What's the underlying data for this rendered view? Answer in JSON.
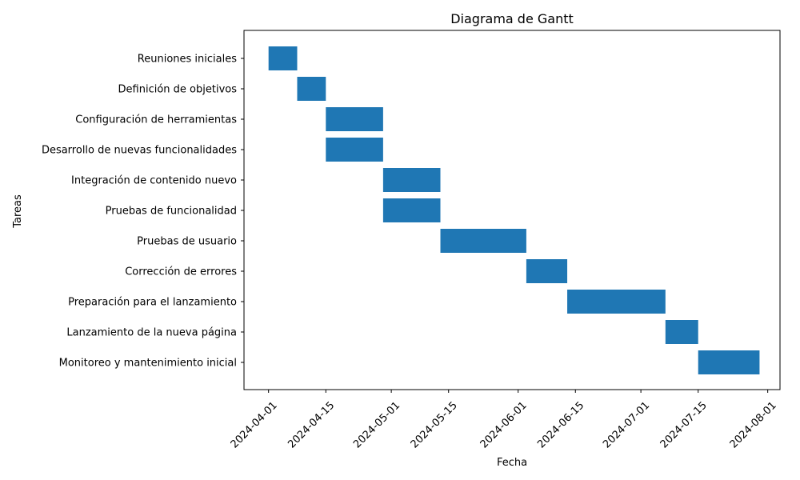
{
  "chart_data": {
    "type": "bar",
    "orientation": "horizontal-gantt",
    "title": "Diagrama de Gantt",
    "xlabel": "Fecha",
    "ylabel": "Tareas",
    "xlim": [
      "2024-03-26",
      "2024-08-04"
    ],
    "x_ticks": [
      "2024-04-01",
      "2024-04-15",
      "2024-05-01",
      "2024-05-15",
      "2024-06-01",
      "2024-06-15",
      "2024-07-01",
      "2024-07-15",
      "2024-08-01"
    ],
    "bar_color": "#1f77b4",
    "grid": false,
    "tasks": [
      {
        "name": "Reuniones iniciales",
        "start": "2024-04-01",
        "end": "2024-04-08"
      },
      {
        "name": "Definición de objetivos",
        "start": "2024-04-08",
        "end": "2024-04-15"
      },
      {
        "name": "Configuración de herramientas",
        "start": "2024-04-15",
        "end": "2024-04-29"
      },
      {
        "name": "Desarrollo de nuevas funcionalidades",
        "start": "2024-04-15",
        "end": "2024-04-29"
      },
      {
        "name": "Integración de contenido nuevo",
        "start": "2024-04-29",
        "end": "2024-05-13"
      },
      {
        "name": "Pruebas de funcionalidad",
        "start": "2024-04-29",
        "end": "2024-05-13"
      },
      {
        "name": "Pruebas de usuario",
        "start": "2024-05-13",
        "end": "2024-06-03"
      },
      {
        "name": "Corrección de errores",
        "start": "2024-06-03",
        "end": "2024-06-13"
      },
      {
        "name": "Preparación para el lanzamiento",
        "start": "2024-06-13",
        "end": "2024-07-07"
      },
      {
        "name": "Lanzamiento de la nueva página",
        "start": "2024-07-07",
        "end": "2024-07-15"
      },
      {
        "name": "Monitoreo y mantenimiento inicial",
        "start": "2024-07-15",
        "end": "2024-07-30"
      }
    ]
  }
}
